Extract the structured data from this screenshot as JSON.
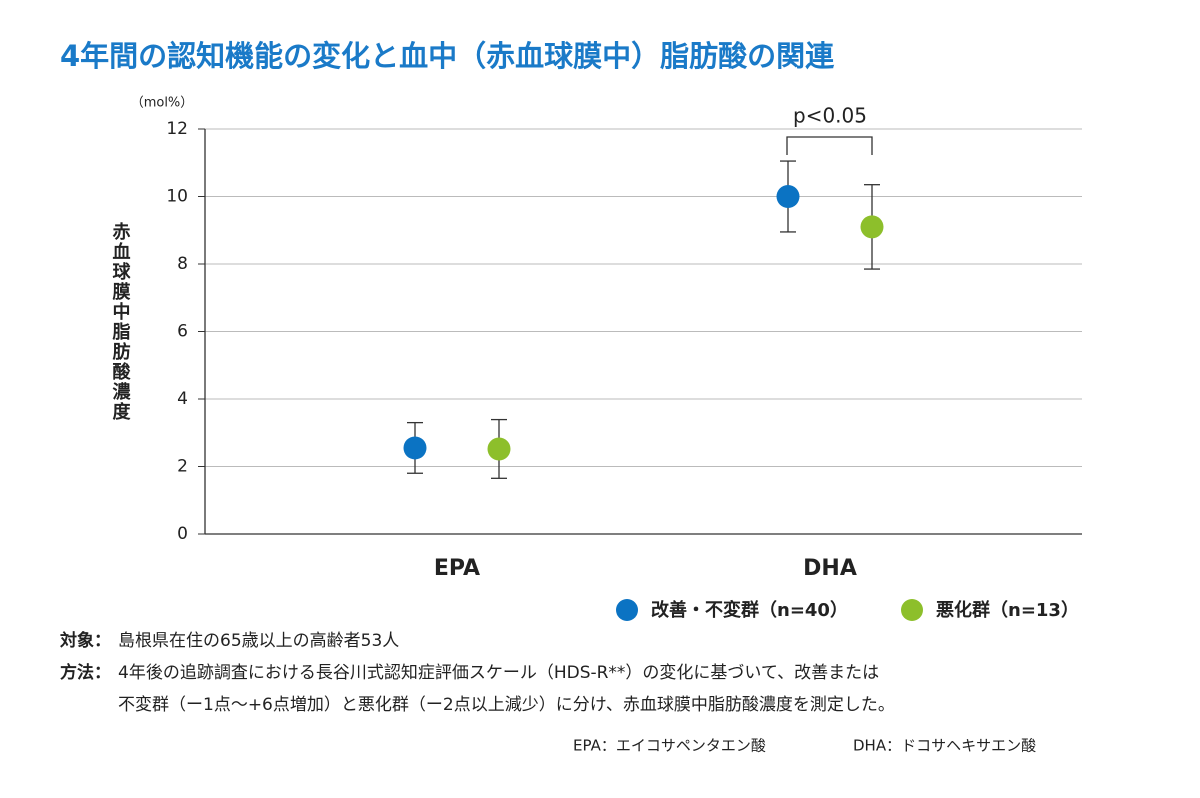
{
  "chart_data": {
    "type": "dot-error",
    "title": "4年間の認知機能の変化と血中（赤血球膜中）脂肪酸の関連",
    "y_unit": "（mol%）",
    "y_label": "赤血球膜中脂肪酸濃度",
    "categories": [
      "EPA",
      "DHA"
    ],
    "series": [
      {
        "name": "改善・不変群（n=40）",
        "color": "#0b73c3",
        "values": [
          2.55,
          10.0
        ],
        "errors": [
          0.75,
          1.05
        ]
      },
      {
        "name": "悪化群（n=13）",
        "color": "#8dbf2b",
        "values": [
          2.52,
          9.1
        ],
        "errors": [
          0.87,
          1.25
        ]
      }
    ],
    "annotation": "p<0.05",
    "ylim": [
      0,
      12
    ],
    "yticks": [
      0,
      2,
      4,
      6,
      8,
      10,
      12
    ],
    "grid": true
  },
  "notes": {
    "subject_label": "対象：",
    "subject": "島根県在住の65歳以上の高齢者53人",
    "method_label": "方法：",
    "method": [
      "4年後の追跡調査における長谷川式認知症評価スケール（HDS-R**）の変化に基づいて、改善または",
      "不変群（ー1点〜+6点増加）と悪化群（ー2点以上減少）に分け、赤血球膜中脂肪酸濃度を測定した。"
    ],
    "abbr": [
      "EPA：エイコサペンタエン酸",
      "DHA：ドコサヘキサエン酸"
    ]
  }
}
